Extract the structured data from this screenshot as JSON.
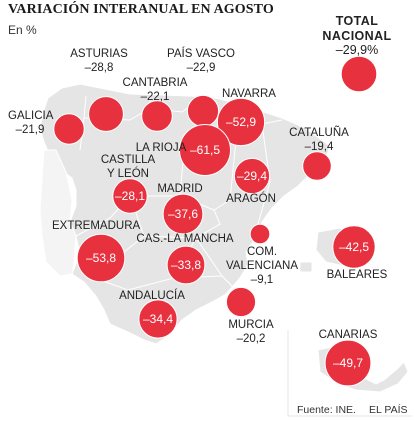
{
  "header": {
    "title": "VARIACIÓN INTERANUAL EN AGOSTO",
    "unit": "En %"
  },
  "total": {
    "label_line1": "TOTAL",
    "label_line2": "NACIONAL",
    "value": "–29,9%"
  },
  "regions": [
    {
      "id": "galicia",
      "name": [
        "GALICIA"
      ],
      "label_value": "–21,9"
    },
    {
      "id": "asturias",
      "name": [
        "ASTURIAS"
      ],
      "label_value": "–28,8"
    },
    {
      "id": "cantabria",
      "name": [
        "CANTABRIA"
      ],
      "label_value": "–22,1"
    },
    {
      "id": "pais-vasco",
      "name": [
        "PAÍS VASCO"
      ],
      "label_value": "–22,9"
    },
    {
      "id": "navarra",
      "name": [
        "NAVARRA"
      ],
      "bubble_value": "–52,9"
    },
    {
      "id": "la-rioja",
      "name": [
        "LA RIOJA"
      ],
      "bubble_value": "–61,5"
    },
    {
      "id": "cataluna",
      "name": [
        "CATALUÑA"
      ],
      "label_value": "–19,4"
    },
    {
      "id": "castilla-leon",
      "name": [
        "CASTILLA",
        "Y LEÓN"
      ],
      "bubble_value": "–28,1"
    },
    {
      "id": "aragon",
      "name": [
        "ARAGÓN"
      ],
      "bubble_value": "–29,4"
    },
    {
      "id": "madrid",
      "name": [
        "MADRID"
      ],
      "bubble_value": "–37,6"
    },
    {
      "id": "extremadura",
      "name": [
        "EXTREMADURA"
      ],
      "bubble_value": "–53,8"
    },
    {
      "id": "castilla-mancha",
      "name": [
        "CAS.-LA MANCHA"
      ],
      "bubble_value": "–33,8"
    },
    {
      "id": "valenciana",
      "name": [
        "COM.",
        "VALENCIANA"
      ],
      "label_value": "–9,1"
    },
    {
      "id": "baleares",
      "name": [
        "BALEARES"
      ],
      "bubble_value": "–42,5"
    },
    {
      "id": "andalucia",
      "name": [
        "ANDALUCÍA"
      ],
      "bubble_value": "–34,4"
    },
    {
      "id": "murcia",
      "name": [
        "MURCIA"
      ],
      "label_value": "–20,2"
    },
    {
      "id": "canarias",
      "name": [
        "CANARIAS"
      ],
      "bubble_value": "–49,7"
    }
  ],
  "map_data": {
    "values": {
      "galicia": -21.9,
      "asturias": -28.8,
      "cantabria": -22.1,
      "pais-vasco": -22.9,
      "navarra": -52.9,
      "la-rioja": -61.5,
      "cataluna": -19.4,
      "castilla-leon": -28.1,
      "aragon": -29.4,
      "madrid": -37.6,
      "extremadura": -53.8,
      "castilla-mancha": -33.8,
      "valenciana": -9.1,
      "baleares": -42.5,
      "andalucia": -34.4,
      "murcia": -20.2,
      "canarias": -49.7,
      "total": -29.9
    },
    "bubble_color": "#e8313f",
    "land_color": "#e5e5e5",
    "border_color": "#ffffff"
  },
  "footer": {
    "source": "Fuente: INE.",
    "publisher": "EL PAÍS"
  }
}
